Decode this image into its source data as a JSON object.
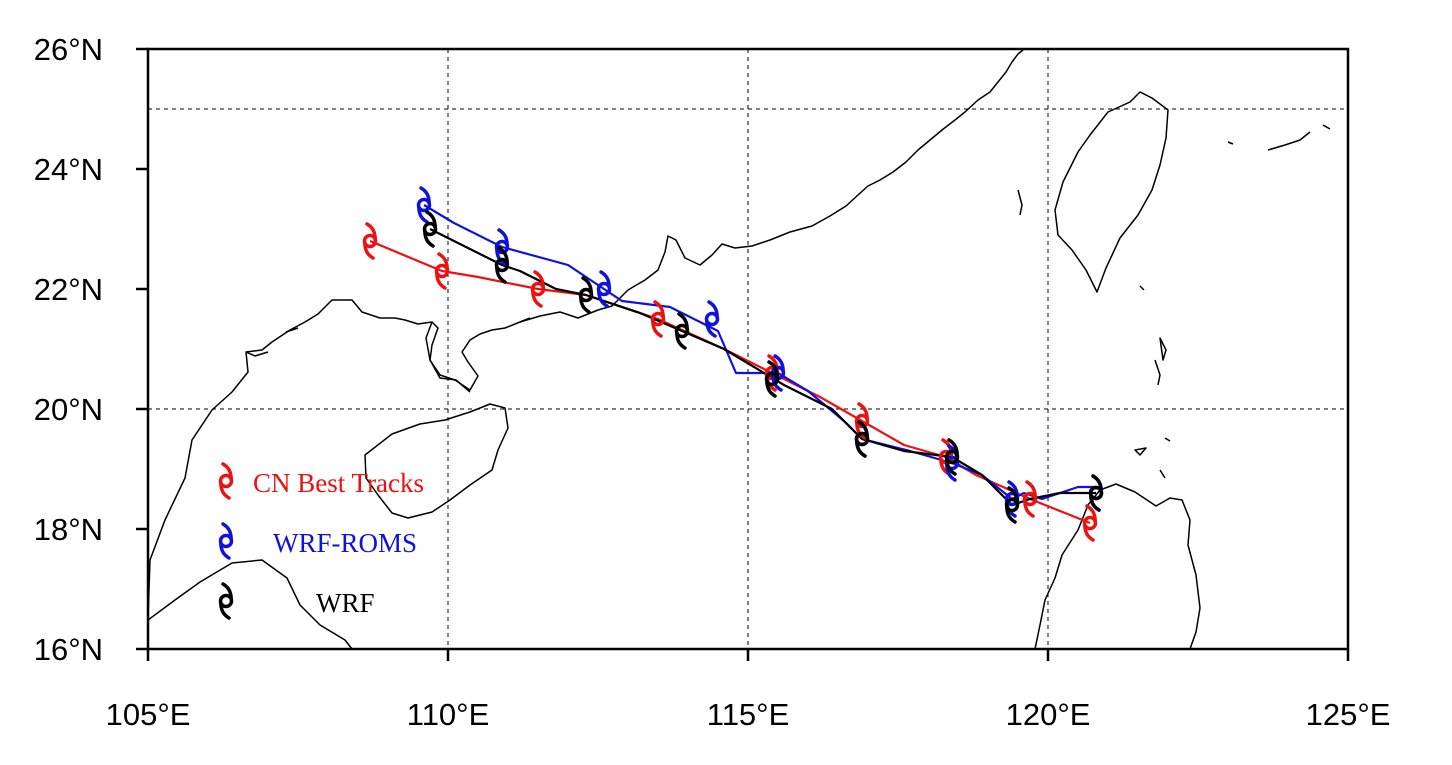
{
  "map": {
    "extent": {
      "lon": [
        105,
        125
      ],
      "lat": [
        16,
        26
      ]
    },
    "grid": {
      "lon_lines": [
        110,
        115,
        120
      ],
      "lat_lines": [
        20,
        25
      ],
      "style": "dashed"
    },
    "x_ticks": [
      "105°E",
      "110°E",
      "115°E",
      "120°E",
      "125°E"
    ],
    "y_ticks": [
      "16°N",
      "18°N",
      "20°N",
      "22°N",
      "24°N",
      "26°N"
    ],
    "tracks": [
      {
        "name": "CN Best Tracks",
        "color": "#ee1111",
        "line": [
          [
            120.7,
            18.1
          ],
          [
            119.7,
            18.5
          ],
          [
            118.8,
            18.9
          ],
          [
            118.3,
            19.2
          ],
          [
            117.6,
            19.4
          ],
          [
            116.9,
            19.8
          ],
          [
            116.2,
            20.2
          ],
          [
            115.4,
            20.6
          ],
          [
            114.6,
            21.0
          ],
          [
            113.5,
            21.5
          ],
          [
            112.3,
            21.9
          ],
          [
            111.5,
            22.0
          ],
          [
            110.5,
            22.2
          ],
          [
            109.9,
            22.3
          ],
          [
            108.7,
            22.8
          ]
        ],
        "markers": [
          [
            120.7,
            18.1
          ],
          [
            119.7,
            18.5
          ],
          [
            118.3,
            19.2
          ],
          [
            116.9,
            19.8
          ],
          [
            115.4,
            20.6
          ],
          [
            113.5,
            21.5
          ],
          [
            111.5,
            22.0
          ],
          [
            109.9,
            22.3
          ],
          [
            108.7,
            22.8
          ]
        ]
      },
      {
        "name": "WRF-ROMS",
        "color": "#1111dd",
        "line": [
          [
            120.8,
            18.7
          ],
          [
            120.5,
            18.7
          ],
          [
            119.9,
            18.5
          ],
          [
            119.6,
            18.6
          ],
          [
            119.4,
            18.5
          ],
          [
            118.9,
            18.9
          ],
          [
            118.4,
            19.1
          ],
          [
            117.7,
            19.3
          ],
          [
            116.9,
            19.5
          ],
          [
            116.6,
            19.8
          ],
          [
            116.0,
            20.3
          ],
          [
            115.5,
            20.6
          ],
          [
            114.8,
            20.6
          ],
          [
            114.5,
            21.3
          ],
          [
            113.7,
            21.7
          ],
          [
            112.9,
            21.8
          ],
          [
            112.6,
            22.0
          ],
          [
            112.0,
            22.4
          ],
          [
            110.9,
            22.7
          ],
          [
            110.1,
            23.1
          ],
          [
            109.6,
            23.4
          ]
        ],
        "markers": [
          [
            120.8,
            18.6
          ],
          [
            119.4,
            18.5
          ],
          [
            118.4,
            19.1
          ],
          [
            116.9,
            19.5
          ],
          [
            115.5,
            20.6
          ],
          [
            114.4,
            21.5
          ],
          [
            112.6,
            22.0
          ],
          [
            110.9,
            22.7
          ],
          [
            109.6,
            23.4
          ]
        ]
      },
      {
        "name": "WRF",
        "color": "#000000",
        "line": [
          [
            120.8,
            18.6
          ],
          [
            120.2,
            18.6
          ],
          [
            119.7,
            18.5
          ],
          [
            119.4,
            18.4
          ],
          [
            118.9,
            18.9
          ],
          [
            118.4,
            19.2
          ],
          [
            117.6,
            19.3
          ],
          [
            116.9,
            19.5
          ],
          [
            116.4,
            20.0
          ],
          [
            115.6,
            20.4
          ],
          [
            114.6,
            21.0
          ],
          [
            113.9,
            21.3
          ],
          [
            113.2,
            21.6
          ],
          [
            112.3,
            21.9
          ],
          [
            111.8,
            22.0
          ],
          [
            111.2,
            22.3
          ],
          [
            110.9,
            22.4
          ],
          [
            110.3,
            22.7
          ],
          [
            109.7,
            23.0
          ]
        ],
        "markers": [
          [
            120.8,
            18.6
          ],
          [
            119.4,
            18.4
          ],
          [
            118.4,
            19.2
          ],
          [
            116.9,
            19.5
          ],
          [
            115.4,
            20.5
          ],
          [
            113.9,
            21.3
          ],
          [
            112.3,
            21.9
          ],
          [
            110.9,
            22.4
          ],
          [
            109.7,
            23.0
          ]
        ]
      }
    ],
    "legend": [
      {
        "label": "CN Best Tracks",
        "color": "#ee1111"
      },
      {
        "label": "WRF-ROMS",
        "color": "#1111dd"
      },
      {
        "label": "WRF",
        "color": "#000000"
      }
    ]
  }
}
